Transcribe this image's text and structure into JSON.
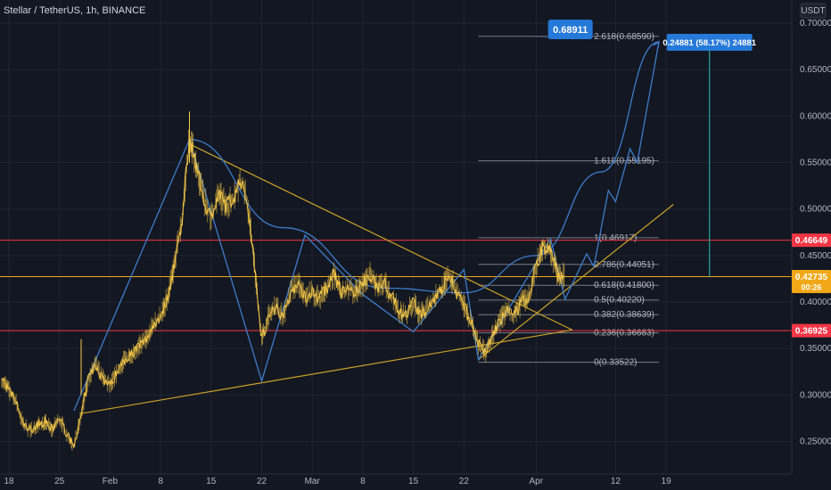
{
  "header": {
    "title": "Stellar / TetherUS, 1h, BINANCE"
  },
  "currency": "USDT",
  "colors": {
    "background": "#131722",
    "grid": "#1f2430",
    "price": "#f7c948",
    "pattern": "#3d7cc9",
    "trendline": "#c9a227",
    "fib": "#787b86",
    "red_line": "#f23645",
    "target_arrow": "#26a69a",
    "badge_blue": "#2679d8",
    "current_price_badge": "#f0a816"
  },
  "chart_data": {
    "type": "line",
    "xlabel": "",
    "ylabel": "",
    "ylim": [
      0.215,
      0.725
    ],
    "x_ticks": [
      {
        "label": "18",
        "date": "2021-01-18"
      },
      {
        "label": "25",
        "date": "2021-01-25"
      },
      {
        "label": "Feb",
        "date": "2021-02-01"
      },
      {
        "label": "8",
        "date": "2021-02-08"
      },
      {
        "label": "15",
        "date": "2021-02-15"
      },
      {
        "label": "22",
        "date": "2021-02-22"
      },
      {
        "label": "Mar",
        "date": "2021-03-01"
      },
      {
        "label": "8",
        "date": "2021-03-08"
      },
      {
        "label": "15",
        "date": "2021-03-15"
      },
      {
        "label": "22",
        "date": "2021-03-22"
      },
      {
        "label": "Apr",
        "date": "2021-04-01"
      },
      {
        "label": "12",
        "date": "2021-04-12"
      },
      {
        "label": "19",
        "date": "2021-04-19"
      }
    ],
    "y_ticks": [
      "0.25000",
      "0.30000",
      "0.35000",
      "0.40000",
      "0.45000",
      "0.50000",
      "0.55000",
      "0.60000",
      "0.65000",
      "0.70000"
    ],
    "y_tick_values": [
      0.25,
      0.3,
      0.35,
      0.4,
      0.45,
      0.5,
      0.55,
      0.6,
      0.65,
      0.7
    ],
    "series": [
      {
        "type": "price",
        "points": [
          [
            "2021-01-17",
            0.318
          ],
          [
            "2021-01-18",
            0.305
          ],
          [
            "2021-01-19",
            0.292
          ],
          [
            "2021-01-20",
            0.268
          ],
          [
            "2021-01-21",
            0.262
          ],
          [
            "2021-01-22",
            0.268
          ],
          [
            "2021-01-23",
            0.271
          ],
          [
            "2021-01-24",
            0.263
          ],
          [
            "2021-01-25",
            0.275
          ],
          [
            "2021-01-26",
            0.258
          ],
          [
            "2021-01-27",
            0.245
          ],
          [
            "2021-01-28",
            0.278
          ],
          [
            "2021-01-29",
            0.318
          ],
          [
            "2021-01-30",
            0.332
          ],
          [
            "2021-01-31",
            0.318
          ],
          [
            "2021-02-01",
            0.31
          ],
          [
            "2021-02-02",
            0.325
          ],
          [
            "2021-02-03",
            0.338
          ],
          [
            "2021-02-04",
            0.345
          ],
          [
            "2021-02-05",
            0.352
          ],
          [
            "2021-02-06",
            0.36
          ],
          [
            "2021-02-07",
            0.375
          ],
          [
            "2021-02-08",
            0.385
          ],
          [
            "2021-02-09",
            0.405
          ],
          [
            "2021-02-10",
            0.445
          ],
          [
            "2021-02-11",
            0.49
          ],
          [
            "2021-02-12",
            0.58
          ],
          [
            "2021-02-13",
            0.545
          ],
          [
            "2021-02-14",
            0.51
          ],
          [
            "2021-02-15",
            0.49
          ],
          [
            "2021-02-16",
            0.515
          ],
          [
            "2021-02-17",
            0.505
          ],
          [
            "2021-02-18",
            0.51
          ],
          [
            "2021-02-19",
            0.53
          ],
          [
            "2021-02-20",
            0.51
          ],
          [
            "2021-02-21",
            0.44
          ],
          [
            "2021-02-22",
            0.36
          ],
          [
            "2021-02-23",
            0.385
          ],
          [
            "2021-02-24",
            0.395
          ],
          [
            "2021-02-25",
            0.385
          ],
          [
            "2021-02-26",
            0.41
          ],
          [
            "2021-02-27",
            0.42
          ],
          [
            "2021-02-28",
            0.405
          ],
          [
            "2021-03-01",
            0.41
          ],
          [
            "2021-03-02",
            0.405
          ],
          [
            "2021-03-03",
            0.415
          ],
          [
            "2021-03-04",
            0.43
          ],
          [
            "2021-03-05",
            0.41
          ],
          [
            "2021-03-06",
            0.415
          ],
          [
            "2021-03-07",
            0.41
          ],
          [
            "2021-03-08",
            0.42
          ],
          [
            "2021-03-09",
            0.43
          ],
          [
            "2021-03-10",
            0.415
          ],
          [
            "2021-03-11",
            0.42
          ],
          [
            "2021-03-12",
            0.405
          ],
          [
            "2021-03-13",
            0.39
          ],
          [
            "2021-03-14",
            0.385
          ],
          [
            "2021-03-15",
            0.4
          ],
          [
            "2021-03-16",
            0.385
          ],
          [
            "2021-03-17",
            0.395
          ],
          [
            "2021-03-18",
            0.405
          ],
          [
            "2021-03-19",
            0.415
          ],
          [
            "2021-03-20",
            0.43
          ],
          [
            "2021-03-21",
            0.41
          ],
          [
            "2021-03-22",
            0.395
          ],
          [
            "2021-03-23",
            0.38
          ],
          [
            "2021-03-24",
            0.355
          ],
          [
            "2021-03-25",
            0.345
          ],
          [
            "2021-03-26",
            0.365
          ],
          [
            "2021-03-27",
            0.38
          ],
          [
            "2021-03-28",
            0.39
          ],
          [
            "2021-03-29",
            0.385
          ],
          [
            "2021-03-30",
            0.4
          ],
          [
            "2021-03-31",
            0.405
          ],
          [
            "2021-04-01",
            0.44
          ],
          [
            "2021-04-02",
            0.46
          ],
          [
            "2021-04-03",
            0.455
          ],
          [
            "2021-04-04",
            0.43
          ],
          [
            "2021-04-05",
            0.42735
          ]
        ]
      },
      {
        "type": "pattern-zigzag",
        "points": [
          [
            "2021-01-27",
            0.283
          ],
          [
            "2021-02-12",
            0.575
          ],
          [
            "2021-02-22",
            0.315
          ],
          [
            "2021-02-28",
            0.472
          ],
          [
            "2021-03-08",
            0.408
          ],
          [
            "2021-03-15",
            0.368
          ],
          [
            "2021-03-22",
            0.435
          ],
          [
            "2021-03-24",
            0.338
          ],
          [
            "2021-04-03",
            0.468
          ],
          [
            "2021-04-05",
            0.403
          ],
          [
            "2021-04-08",
            0.452
          ],
          [
            "2021-04-09",
            0.438
          ],
          [
            "2021-04-11",
            0.52
          ],
          [
            "2021-04-12",
            0.508
          ],
          [
            "2021-04-14",
            0.565
          ],
          [
            "2021-04-15",
            0.55
          ],
          [
            "2021-04-18",
            0.68
          ]
        ]
      },
      {
        "type": "pattern-curve",
        "points": [
          [
            "2021-02-12",
            0.575
          ],
          [
            "2021-02-25",
            0.48
          ],
          [
            "2021-03-11",
            0.415
          ],
          [
            "2021-03-22",
            0.41
          ],
          [
            "2021-04-01",
            0.45
          ],
          [
            "2021-04-10",
            0.54
          ],
          [
            "2021-04-18",
            0.68
          ]
        ]
      }
    ],
    "trendlines": [
      {
        "name": "upper-trendline",
        "from": [
          "2021-02-12",
          0.57
        ],
        "to": [
          "2021-04-06",
          0.37
        ]
      },
      {
        "name": "lower-trendline",
        "from": [
          "2021-01-28",
          0.28
        ],
        "to": [
          "2021-04-06",
          0.37
        ]
      },
      {
        "name": "rising-trendline",
        "from": [
          "2021-03-24",
          0.338
        ],
        "to": [
          "2021-04-20",
          0.505
        ]
      }
    ],
    "fib_range": {
      "start": "2021-03-24",
      "end": "2021-04-18"
    },
    "fib_levels": [
      {
        "label": "2.618(0.68590)",
        "value": 0.6859
      },
      {
        "label": "1.618(0.55195)",
        "value": 0.55195
      },
      {
        "label": "1(0.46917)",
        "value": 0.46917
      },
      {
        "label": "0.786(0.44051)",
        "value": 0.44051
      },
      {
        "label": "0.618(0.41800)",
        "value": 0.418
      },
      {
        "label": "0.5(0.40220)",
        "value": 0.4022
      },
      {
        "label": "0.382(0.38639)",
        "value": 0.38639
      },
      {
        "label": "0.236(0.36683)",
        "value": 0.36683
      },
      {
        "label": "0(0.33522)",
        "value": 0.33522
      }
    ],
    "horizontal_lines": [
      {
        "name": "resistance-line",
        "value": 0.46649,
        "label": "0.46649",
        "color": "#f23645"
      },
      {
        "name": "support-line",
        "value": 0.36925,
        "label": "0.36925",
        "color": "#f23645"
      },
      {
        "name": "current-price-line",
        "value": 0.42735,
        "label": "0.42735",
        "color": "#f0a816"
      }
    ],
    "current_price": {
      "value": "0.42735",
      "countdown": "00:26"
    },
    "target_callout": {
      "label": "0.68911",
      "value": 0.68911
    },
    "measure": {
      "label": "0.24881 (58.17%) 24881",
      "from": 0.42735,
      "to": 0.68,
      "date": "2021-04-25"
    }
  }
}
